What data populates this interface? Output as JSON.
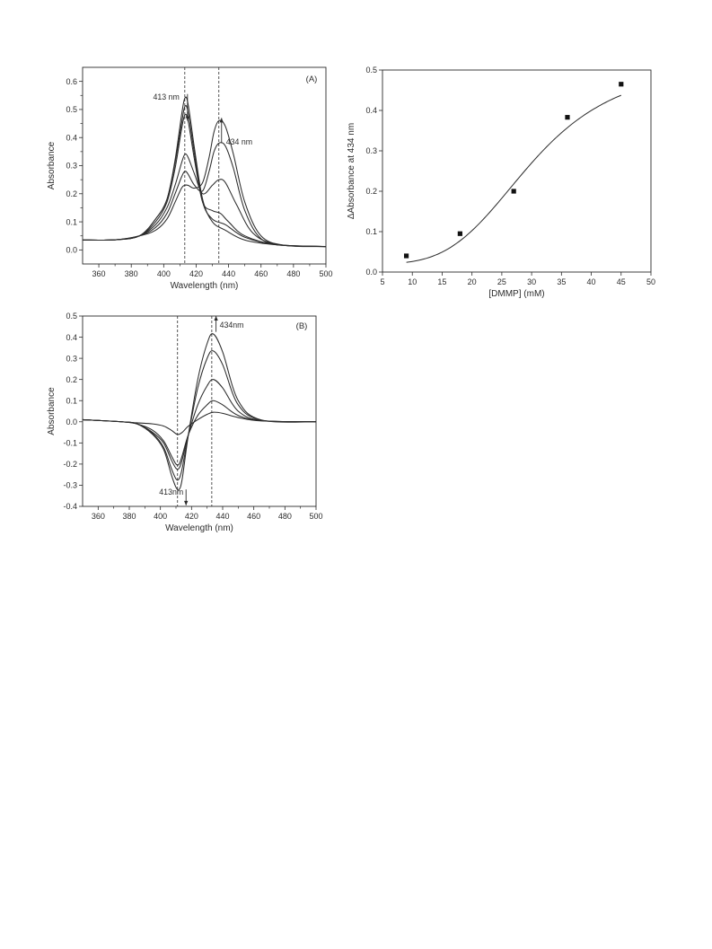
{
  "colors": {
    "ink": "#2b2b2b",
    "background": "#ffffff"
  },
  "chart_data": [
    {
      "id": "A",
      "type": "line",
      "panel_label": "(A)",
      "xlabel": "Wavelength (nm)",
      "ylabel": "Absorbance",
      "xlim": [
        350,
        500
      ],
      "ylim": [
        -0.05,
        0.65
      ],
      "xticks": [
        360,
        380,
        400,
        420,
        440,
        460,
        480,
        500
      ],
      "yticks": [
        0.0,
        0.1,
        0.2,
        0.3,
        0.4,
        0.5,
        0.6
      ],
      "ytick_labels": [
        "0.0",
        "0.1",
        "0.2",
        "0.3",
        "0.4",
        "0.5",
        "0.6"
      ],
      "annotations": [
        {
          "text": "413 nm",
          "x": 413,
          "direction": "down"
        },
        {
          "text": "434 nm",
          "x": 434,
          "direction": "up"
        }
      ],
      "reference_lines_x": [
        413,
        434
      ],
      "series": [
        {
          "values": [
            [
              350,
              0.035
            ],
            [
              370,
              0.036
            ],
            [
              385,
              0.05
            ],
            [
              395,
              0.11
            ],
            [
              402,
              0.18
            ],
            [
              407,
              0.32
            ],
            [
              411,
              0.48
            ],
            [
              413,
              0.54
            ],
            [
              415,
              0.52
            ],
            [
              419,
              0.36
            ],
            [
              424,
              0.18
            ],
            [
              430,
              0.1
            ],
            [
              438,
              0.07
            ],
            [
              450,
              0.035
            ],
            [
              470,
              0.018
            ],
            [
              500,
              0.012
            ]
          ]
        },
        {
          "values": [
            [
              350,
              0.035
            ],
            [
              370,
              0.036
            ],
            [
              385,
              0.05
            ],
            [
              395,
              0.11
            ],
            [
              402,
              0.18
            ],
            [
              407,
              0.31
            ],
            [
              411,
              0.45
            ],
            [
              413,
              0.51
            ],
            [
              415,
              0.49
            ],
            [
              419,
              0.34
            ],
            [
              424,
              0.17
            ],
            [
              430,
              0.11
            ],
            [
              438,
              0.09
            ],
            [
              450,
              0.045
            ],
            [
              470,
              0.018
            ],
            [
              500,
              0.012
            ]
          ]
        },
        {
          "values": [
            [
              350,
              0.035
            ],
            [
              370,
              0.036
            ],
            [
              385,
              0.05
            ],
            [
              395,
              0.1
            ],
            [
              402,
              0.17
            ],
            [
              407,
              0.29
            ],
            [
              411,
              0.43
            ],
            [
              413,
              0.48
            ],
            [
              415,
              0.46
            ],
            [
              419,
              0.32
            ],
            [
              424,
              0.17
            ],
            [
              430,
              0.14
            ],
            [
              435,
              0.13
            ],
            [
              440,
              0.1
            ],
            [
              450,
              0.05
            ],
            [
              470,
              0.018
            ],
            [
              500,
              0.012
            ]
          ]
        },
        {
          "values": [
            [
              350,
              0.035
            ],
            [
              370,
              0.036
            ],
            [
              385,
              0.05
            ],
            [
              395,
              0.09
            ],
            [
              402,
              0.15
            ],
            [
              407,
              0.23
            ],
            [
              411,
              0.31
            ],
            [
              413,
              0.34
            ],
            [
              415,
              0.33
            ],
            [
              419,
              0.27
            ],
            [
              424,
              0.2
            ],
            [
              430,
              0.23
            ],
            [
              434,
              0.25
            ],
            [
              438,
              0.24
            ],
            [
              445,
              0.16
            ],
            [
              455,
              0.06
            ],
            [
              470,
              0.02
            ],
            [
              500,
              0.012
            ]
          ]
        },
        {
          "values": [
            [
              350,
              0.035
            ],
            [
              370,
              0.036
            ],
            [
              385,
              0.05
            ],
            [
              395,
              0.08
            ],
            [
              402,
              0.13
            ],
            [
              407,
              0.2
            ],
            [
              411,
              0.26
            ],
            [
              413,
              0.28
            ],
            [
              415,
              0.27
            ],
            [
              419,
              0.23
            ],
            [
              424,
              0.21
            ],
            [
              428,
              0.28
            ],
            [
              431,
              0.35
            ],
            [
              434,
              0.38
            ],
            [
              438,
              0.37
            ],
            [
              443,
              0.29
            ],
            [
              450,
              0.14
            ],
            [
              460,
              0.04
            ],
            [
              475,
              0.016
            ],
            [
              500,
              0.012
            ]
          ]
        },
        {
          "values": [
            [
              350,
              0.035
            ],
            [
              370,
              0.036
            ],
            [
              385,
              0.05
            ],
            [
              395,
              0.07
            ],
            [
              402,
              0.11
            ],
            [
              407,
              0.17
            ],
            [
              411,
              0.22
            ],
            [
              413,
              0.23
            ],
            [
              415,
              0.23
            ],
            [
              419,
              0.22
            ],
            [
              424,
              0.24
            ],
            [
              428,
              0.33
            ],
            [
              431,
              0.42
            ],
            [
              434,
              0.46
            ],
            [
              438,
              0.44
            ],
            [
              443,
              0.34
            ],
            [
              450,
              0.17
            ],
            [
              460,
              0.05
            ],
            [
              475,
              0.016
            ],
            [
              500,
              0.012
            ]
          ]
        }
      ]
    },
    {
      "id": "B",
      "type": "line",
      "panel_label": "(B)",
      "xlabel": "Wavelength (nm)",
      "ylabel": "Absorbance",
      "xlim": [
        350,
        500
      ],
      "ylim": [
        -0.4,
        0.5
      ],
      "xticks": [
        360,
        380,
        400,
        420,
        440,
        460,
        480,
        500
      ],
      "yticks": [
        -0.4,
        -0.3,
        -0.2,
        -0.1,
        0.0,
        0.1,
        0.2,
        0.3,
        0.4,
        0.5
      ],
      "ytick_labels": [
        "-0.4",
        "-0.3",
        "-0.2",
        "-0.1",
        "0.0",
        "0.1",
        "0.2",
        "0.3",
        "0.4",
        "0.5"
      ],
      "annotations": [
        {
          "text": "413nm",
          "x": 413,
          "direction": "down"
        },
        {
          "text": "434nm",
          "x": 434,
          "direction": "up"
        }
      ],
      "reference_lines_x": [
        411,
        433
      ],
      "series": [
        {
          "values": [
            [
              350,
              0.01
            ],
            [
              375,
              0.0
            ],
            [
              385,
              -0.005
            ],
            [
              395,
              -0.01
            ],
            [
              402,
              -0.02
            ],
            [
              407,
              -0.04
            ],
            [
              411,
              -0.06
            ],
            [
              414,
              -0.05
            ],
            [
              418,
              -0.02
            ],
            [
              424,
              0.01
            ],
            [
              430,
              0.035
            ],
            [
              434,
              0.045
            ],
            [
              440,
              0.04
            ],
            [
              450,
              0.02
            ],
            [
              465,
              0.004
            ],
            [
              500,
              0.0
            ]
          ]
        },
        {
          "values": [
            [
              350,
              0.01
            ],
            [
              375,
              0.0
            ],
            [
              385,
              -0.01
            ],
            [
              395,
              -0.04
            ],
            [
              402,
              -0.09
            ],
            [
              407,
              -0.16
            ],
            [
              410,
              -0.2
            ],
            [
              412,
              -0.2
            ],
            [
              414,
              -0.16
            ],
            [
              418,
              -0.06
            ],
            [
              424,
              0.03
            ],
            [
              430,
              0.08
            ],
            [
              434,
              0.1
            ],
            [
              440,
              0.08
            ],
            [
              450,
              0.03
            ],
            [
              465,
              0.005
            ],
            [
              500,
              0.0
            ]
          ]
        },
        {
          "values": [
            [
              350,
              0.01
            ],
            [
              375,
              0.0
            ],
            [
              385,
              -0.01
            ],
            [
              395,
              -0.05
            ],
            [
              402,
              -0.1
            ],
            [
              407,
              -0.18
            ],
            [
              410,
              -0.22
            ],
            [
              412,
              -0.22
            ],
            [
              414,
              -0.18
            ],
            [
              418,
              -0.06
            ],
            [
              424,
              0.08
            ],
            [
              430,
              0.17
            ],
            [
              434,
              0.2
            ],
            [
              440,
              0.16
            ],
            [
              450,
              0.05
            ],
            [
              465,
              0.006
            ],
            [
              500,
              0.0
            ]
          ]
        },
        {
          "values": [
            [
              350,
              0.01
            ],
            [
              375,
              0.0
            ],
            [
              385,
              -0.01
            ],
            [
              395,
              -0.055
            ],
            [
              402,
              -0.12
            ],
            [
              407,
              -0.22
            ],
            [
              410,
              -0.27
            ],
            [
              412,
              -0.27
            ],
            [
              414,
              -0.22
            ],
            [
              418,
              -0.06
            ],
            [
              424,
              0.16
            ],
            [
              430,
              0.3
            ],
            [
              434,
              0.335
            ],
            [
              440,
              0.27
            ],
            [
              450,
              0.08
            ],
            [
              465,
              0.008
            ],
            [
              500,
              0.0
            ]
          ]
        },
        {
          "values": [
            [
              350,
              0.01
            ],
            [
              375,
              0.0
            ],
            [
              385,
              -0.01
            ],
            [
              395,
              -0.06
            ],
            [
              402,
              -0.13
            ],
            [
              407,
              -0.25
            ],
            [
              410,
              -0.31
            ],
            [
              412,
              -0.32
            ],
            [
              414,
              -0.27
            ],
            [
              418,
              -0.06
            ],
            [
              424,
              0.2
            ],
            [
              430,
              0.37
            ],
            [
              434,
              0.415
            ],
            [
              440,
              0.33
            ],
            [
              450,
              0.1
            ],
            [
              465,
              0.008
            ],
            [
              500,
              0.0
            ]
          ]
        }
      ]
    },
    {
      "id": "C",
      "type": "scatter",
      "xlabel": "[DMMP] (mM)",
      "ylabel": "ΔAbsorbance at 434 nm",
      "xlim": [
        5,
        50
      ],
      "ylim": [
        0.0,
        0.5
      ],
      "xticks": [
        5,
        10,
        15,
        20,
        25,
        30,
        35,
        40,
        45,
        50
      ],
      "yticks": [
        0.0,
        0.1,
        0.2,
        0.3,
        0.4,
        0.5
      ],
      "ytick_labels": [
        "0.0",
        "0.1",
        "0.2",
        "0.3",
        "0.4",
        "0.5"
      ],
      "x": [
        9,
        18,
        27,
        36,
        45
      ],
      "y": [
        0.04,
        0.095,
        0.2,
        0.383,
        0.465
      ],
      "fit": {
        "model": "sigmoid",
        "bottom": 0.02,
        "top": 0.52,
        "x50": 30.0,
        "hill": 4.0
      }
    }
  ]
}
